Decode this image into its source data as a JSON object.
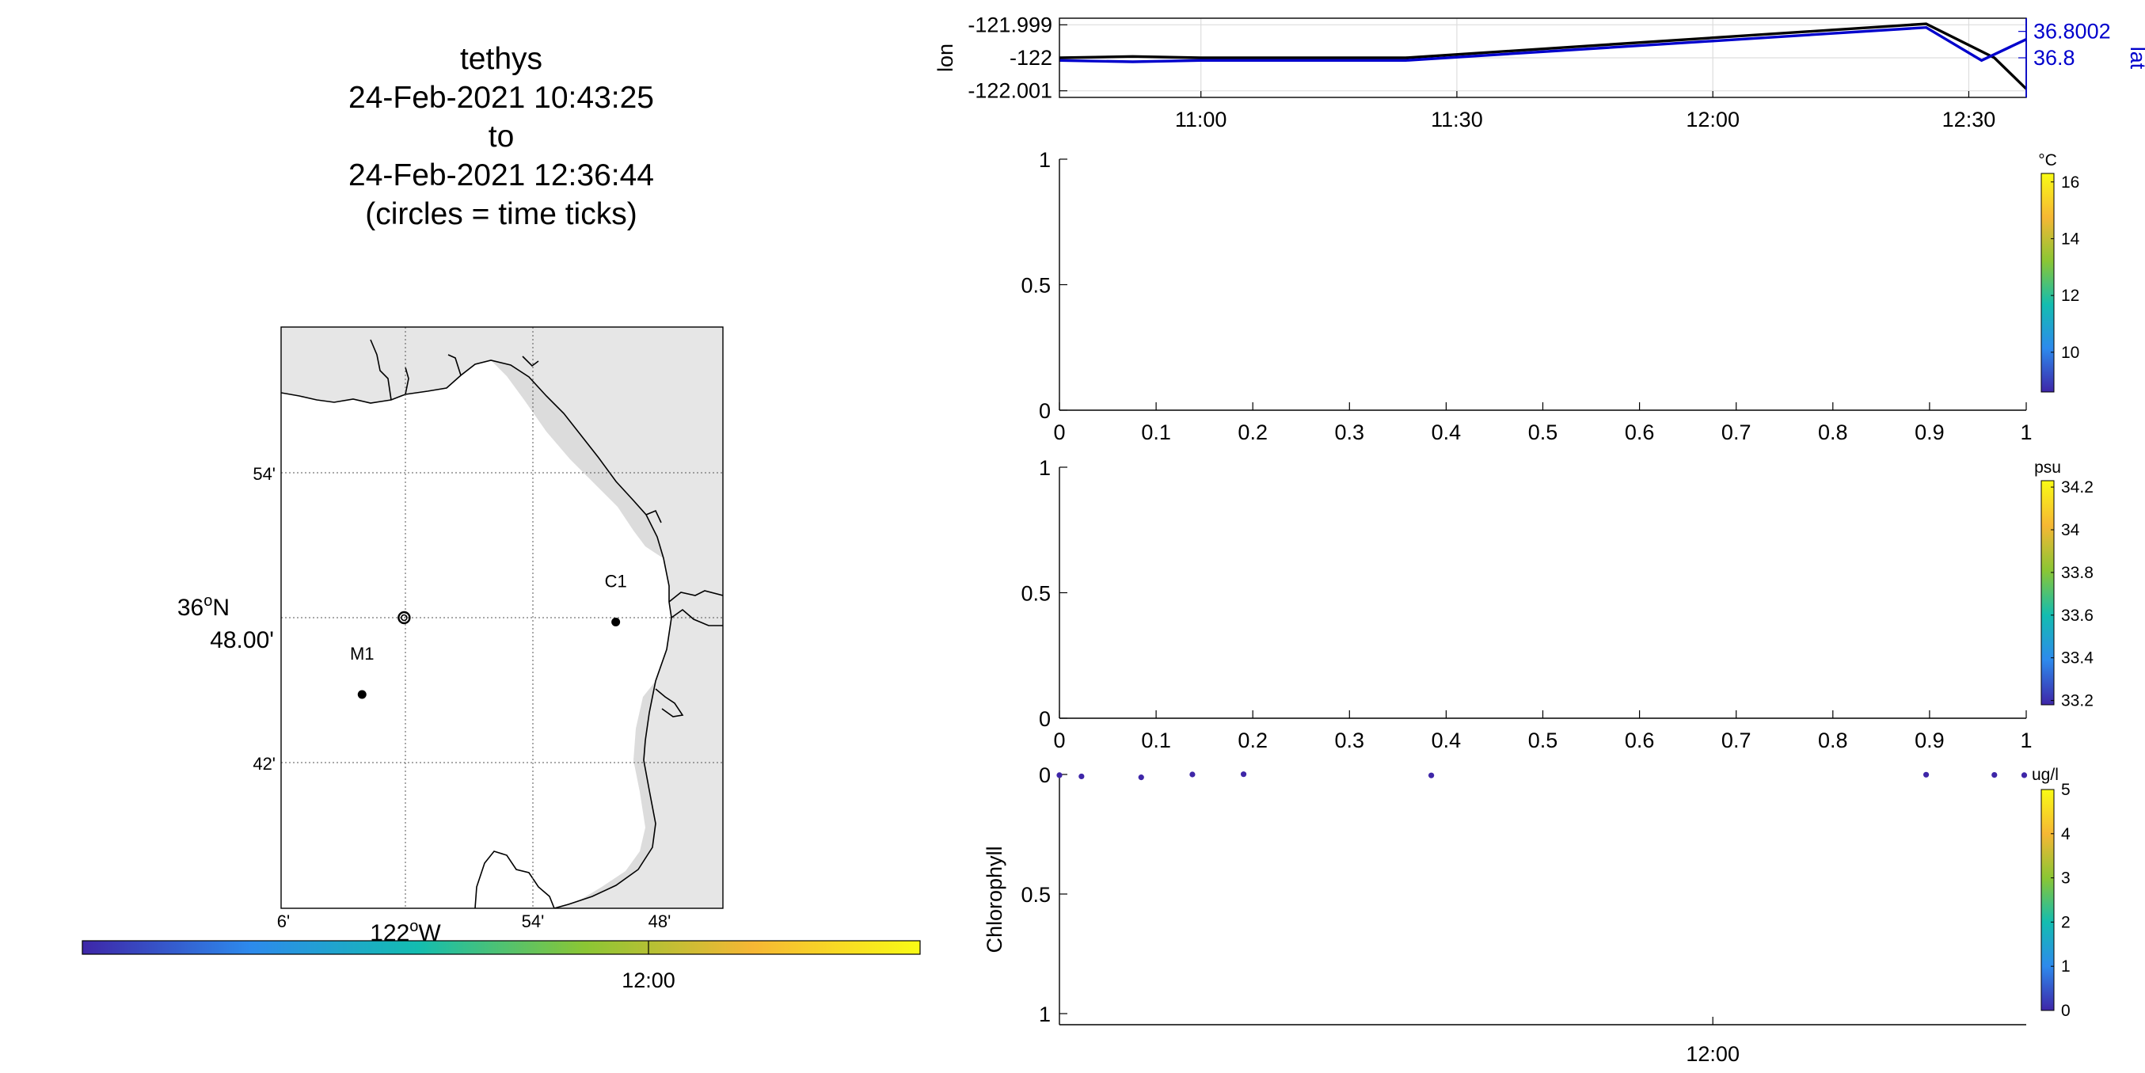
{
  "title": {
    "lines": [
      "tethys",
      "24-Feb-2021 10:43:25",
      "to",
      "24-Feb-2021 12:36:44",
      "(circles = time ticks)"
    ]
  },
  "map": {
    "lat_ticks": [
      "54'",
      "42'"
    ],
    "lat_center": {
      "deg": "36",
      "sup": "o",
      "hemi": "N",
      "min": "48.00'"
    },
    "lon_ticks": [
      "6'",
      "54'",
      "48'"
    ],
    "lon_center": {
      "deg": "122",
      "sup": "o",
      "hemi": "W"
    },
    "stations": [
      {
        "name": "C1",
        "lon": -121.835,
        "lat": 36.797
      },
      {
        "name": "M1",
        "lon": -122.034,
        "lat": 36.747
      }
    ],
    "track_point": {
      "lon": -122.001,
      "lat": 36.8
    }
  },
  "time_colorbar": {
    "tick_label": "12:00",
    "colors": [
      "#3e26a8",
      "#2d8aed",
      "#13bdb0",
      "#8bc634",
      "#f6b734",
      "#f9fb15"
    ]
  },
  "chart_data": [
    {
      "type": "line",
      "x_unit": "time",
      "xlim": [
        "10:43:25",
        "12:36:44"
      ],
      "x_ticks": [
        "11:00",
        "11:30",
        "12:00",
        "12:30"
      ],
      "ylabel": "lon",
      "y2label": "lat",
      "series": [
        {
          "color": "#000000",
          "axis": "left",
          "ylim": [
            -122.0012,
            -121.9988
          ],
          "y_ticks": [
            "-121.999",
            "-122",
            "-122.001"
          ],
          "x": [
            "10:43:25",
            "10:52:00",
            "11:00:00",
            "11:24:00",
            "12:25:00",
            "12:33:00",
            "12:36:44"
          ],
          "y": [
            -122.0,
            -121.99996,
            -122.0,
            -122.0,
            -121.99897,
            -122.0,
            -122.00094
          ]
        },
        {
          "color": "#0000cc",
          "axis": "right",
          "ylim": [
            36.7997,
            36.8003
          ],
          "y_ticks": [
            "36.8002",
            "36.8"
          ],
          "x": [
            "10:43:25",
            "10:52:00",
            "11:00:00",
            "11:24:00",
            "12:25:00",
            "12:31:30",
            "12:36:44"
          ],
          "y": [
            36.79998,
            36.79997,
            36.79998,
            36.79998,
            36.80023,
            36.79998,
            36.80014
          ]
        }
      ]
    },
    {
      "type": "scatter",
      "xlim": [
        0,
        1
      ],
      "ylim": [
        0,
        1
      ],
      "x_ticks": [
        "0",
        "0.1",
        "0.2",
        "0.3",
        "0.4",
        "0.5",
        "0.6",
        "0.7",
        "0.8",
        "0.9",
        "1"
      ],
      "y_ticks": [
        "1",
        "0.5",
        "0"
      ],
      "colorbar": {
        "unit": "°C",
        "ticks": [
          "16",
          "14",
          "12",
          "10"
        ],
        "clim": [
          8.6,
          16.3
        ]
      }
    },
    {
      "type": "scatter",
      "xlim": [
        0,
        1
      ],
      "ylim": [
        0,
        1
      ],
      "x_ticks": [
        "0",
        "0.1",
        "0.2",
        "0.3",
        "0.4",
        "0.5",
        "0.6",
        "0.7",
        "0.8",
        "0.9",
        "1"
      ],
      "y_ticks": [
        "1",
        "0.5",
        "0"
      ],
      "colorbar": {
        "unit": "psu",
        "ticks": [
          "34.2",
          "34",
          "33.8",
          "33.6",
          "33.4",
          "33.2"
        ],
        "clim": [
          33.18,
          34.23
        ]
      }
    },
    {
      "type": "scatter",
      "xlim": [
        "10:43:25",
        "12:36:44"
      ],
      "x_ticks": [
        "12:00"
      ],
      "ylim": [
        0,
        1
      ],
      "y_reversed": true,
      "y_ticks": [
        "0",
        "0.5",
        "1"
      ],
      "ylabel": "Chlorophyll",
      "x": [
        "10:43:25",
        "10:46:00",
        "10:53:00",
        "10:59:00",
        "11:05:00",
        "11:27:00",
        "12:25:00",
        "12:33:00",
        "12:36:30"
      ],
      "y": [
        0.003,
        0.008,
        0.012,
        0.0,
        -0.001,
        0.004,
        0.001,
        0.002,
        0.003
      ],
      "point_color": "#3e26a8",
      "colorbar": {
        "unit": "ug/l",
        "ticks": [
          "5",
          "4",
          "3",
          "2",
          "1",
          "0"
        ],
        "clim": [
          0,
          5
        ]
      }
    }
  ]
}
